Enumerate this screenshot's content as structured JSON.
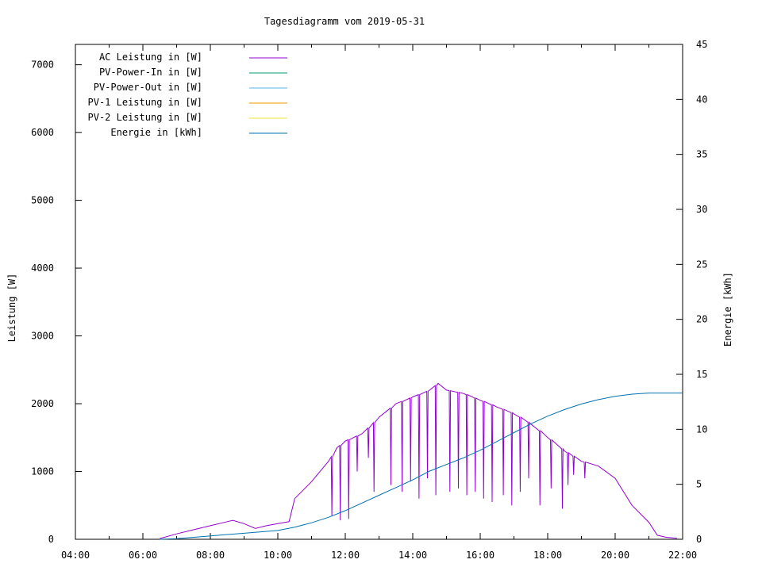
{
  "chart_data": {
    "type": "line",
    "title": "Tagesdiagramm vom 2019-05-31",
    "ylabel": "Leistung [W]",
    "y2label": "Energie [kWh]",
    "xlim": [
      "04:00",
      "22:00"
    ],
    "ylim": [
      0,
      7300
    ],
    "y2lim": [
      0,
      45
    ],
    "x_ticks": [
      "04:00",
      "06:00",
      "08:00",
      "10:00",
      "12:00",
      "14:00",
      "16:00",
      "18:00",
      "20:00",
      "22:00"
    ],
    "y_ticks": [
      "0",
      "1000",
      "2000",
      "3000",
      "4000",
      "5000",
      "6000",
      "7000"
    ],
    "y2_ticks": [
      "0",
      "5",
      "10",
      "15",
      "20",
      "25",
      "30",
      "35",
      "40",
      "45"
    ],
    "grid": false,
    "legend_position": "top-left",
    "series": [
      {
        "name": "AC Leistung in [W]",
        "axis": "left",
        "color": "#9400d3",
        "points": [
          [
            "06:30",
            10
          ],
          [
            "07:00",
            80
          ],
          [
            "07:30",
            140
          ],
          [
            "08:00",
            200
          ],
          [
            "08:30",
            260
          ],
          [
            "08:40",
            280
          ],
          [
            "09:00",
            230
          ],
          [
            "09:20",
            160
          ],
          [
            "09:40",
            200
          ],
          [
            "10:00",
            230
          ],
          [
            "10:20",
            260
          ],
          [
            "10:30",
            600
          ],
          [
            "11:00",
            850
          ],
          [
            "11:30",
            1150
          ],
          [
            "11:45",
            1350
          ],
          [
            "12:00",
            1450
          ],
          [
            "12:30",
            1560
          ],
          [
            "13:00",
            1800
          ],
          [
            "13:30",
            2000
          ],
          [
            "14:00",
            2100
          ],
          [
            "14:30",
            2200
          ],
          [
            "14:45",
            2300
          ],
          [
            "15:00",
            2200
          ],
          [
            "15:30",
            2150
          ],
          [
            "16:00",
            2050
          ],
          [
            "16:30",
            1950
          ],
          [
            "17:00",
            1850
          ],
          [
            "17:30",
            1700
          ],
          [
            "18:00",
            1500
          ],
          [
            "18:30",
            1300
          ],
          [
            "19:00",
            1150
          ],
          [
            "19:30",
            1080
          ],
          [
            "20:00",
            900
          ],
          [
            "20:30",
            500
          ],
          [
            "21:00",
            250
          ],
          [
            "21:15",
            60
          ],
          [
            "21:30",
            30
          ],
          [
            "21:50",
            15
          ]
        ],
        "dropouts": [
          [
            "11:35",
            350
          ],
          [
            "11:50",
            280
          ],
          [
            "12:05",
            300
          ],
          [
            "12:20",
            1000
          ],
          [
            "12:40",
            1200
          ],
          [
            "12:50",
            700
          ],
          [
            "13:20",
            800
          ],
          [
            "13:40",
            700
          ],
          [
            "13:55",
            850
          ],
          [
            "14:10",
            600
          ],
          [
            "14:25",
            900
          ],
          [
            "14:40",
            650
          ],
          [
            "15:05",
            700
          ],
          [
            "15:20",
            750
          ],
          [
            "15:35",
            650
          ],
          [
            "15:50",
            700
          ],
          [
            "16:05",
            600
          ],
          [
            "16:20",
            550
          ],
          [
            "16:40",
            650
          ],
          [
            "16:55",
            500
          ],
          [
            "17:10",
            700
          ],
          [
            "17:25",
            900
          ],
          [
            "17:45",
            500
          ],
          [
            "18:05",
            750
          ],
          [
            "18:25",
            450
          ],
          [
            "18:35",
            800
          ],
          [
            "18:45",
            950
          ],
          [
            "19:05",
            900
          ]
        ]
      },
      {
        "name": "PV-Power-In in [W]",
        "axis": "left",
        "color": "#009e73",
        "points": []
      },
      {
        "name": "PV-Power-Out in [W]",
        "axis": "left",
        "color": "#56b4e9",
        "points": []
      },
      {
        "name": "PV-1 Leistung in [W]",
        "axis": "left",
        "color": "#e69f00",
        "points": []
      },
      {
        "name": "PV-2 Leistung in [W]",
        "axis": "left",
        "color": "#f0e442",
        "points": []
      },
      {
        "name": "Energie in [kWh]",
        "axis": "right",
        "color": "#0072b2",
        "points": [
          [
            "06:30",
            0.0
          ],
          [
            "07:00",
            0.05
          ],
          [
            "08:00",
            0.3
          ],
          [
            "09:00",
            0.55
          ],
          [
            "10:00",
            0.8
          ],
          [
            "10:30",
            1.1
          ],
          [
            "11:00",
            1.5
          ],
          [
            "11:30",
            2.0
          ],
          [
            "12:00",
            2.6
          ],
          [
            "12:30",
            3.3
          ],
          [
            "13:00",
            4.0
          ],
          [
            "13:30",
            4.7
          ],
          [
            "14:00",
            5.4
          ],
          [
            "14:30",
            6.2
          ],
          [
            "15:00",
            6.8
          ],
          [
            "15:30",
            7.4
          ],
          [
            "16:00",
            8.1
          ],
          [
            "16:30",
            8.9
          ],
          [
            "17:00",
            9.7
          ],
          [
            "17:30",
            10.5
          ],
          [
            "18:00",
            11.2
          ],
          [
            "18:30",
            11.8
          ],
          [
            "19:00",
            12.3
          ],
          [
            "19:30",
            12.7
          ],
          [
            "20:00",
            13.0
          ],
          [
            "20:30",
            13.2
          ],
          [
            "21:00",
            13.3
          ],
          [
            "22:00",
            13.3
          ]
        ]
      }
    ]
  }
}
